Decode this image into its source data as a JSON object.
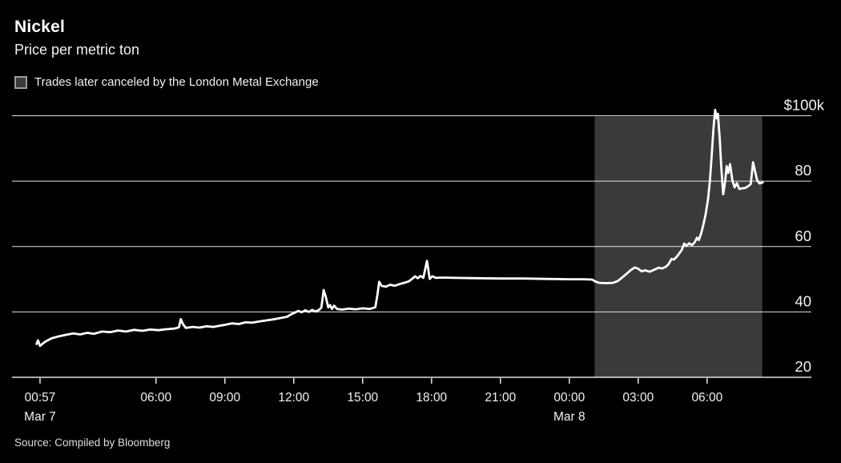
{
  "chart_data": {
    "type": "line",
    "title": "Nickel",
    "subtitle": "Price per metric ton",
    "legend_label": "Trades later canceled by the London Metal Exchange",
    "source": "Source: Compiled by Bloomberg",
    "colors": {
      "background": "#000000",
      "line": "#ffffff",
      "gridline": "#e3e3e0",
      "shaded_region": "#3a3a3a",
      "text": "#f2f2f0"
    },
    "x_axis": {
      "unit": "hours since Mar 7 00:00",
      "min": -0.27,
      "max": 34.54,
      "ticks": [
        {
          "t": 0.95,
          "label": "00:57",
          "sublabel": "Mar 7"
        },
        {
          "t": 6,
          "label": "06:00"
        },
        {
          "t": 9,
          "label": "09:00"
        },
        {
          "t": 12,
          "label": "12:00"
        },
        {
          "t": 15,
          "label": "15:00"
        },
        {
          "t": 18,
          "label": "18:00"
        },
        {
          "t": 21,
          "label": "21:00"
        },
        {
          "t": 24,
          "label": "00:00",
          "sublabel": "Mar 8"
        },
        {
          "t": 27,
          "label": "03:00"
        },
        {
          "t": 30,
          "label": "06:00"
        }
      ]
    },
    "y_axis": {
      "unit": "USD thousands per metric ton",
      "min": 20,
      "max": 100,
      "ticks": [
        {
          "v": 100,
          "label": "$100k"
        },
        {
          "v": 80,
          "label": "80"
        },
        {
          "v": 60,
          "label": "60"
        },
        {
          "v": 40,
          "label": "40"
        },
        {
          "v": 20,
          "label": "20"
        }
      ]
    },
    "shaded_region": {
      "start": 25.1,
      "end": 32.4
    },
    "series": [
      {
        "name": "Nickel price",
        "points": [
          [
            0.8,
            30.2
          ],
          [
            0.86,
            31.3
          ],
          [
            0.95,
            29.6
          ],
          [
            1.05,
            30.2
          ],
          [
            1.2,
            31.0
          ],
          [
            1.45,
            31.9
          ],
          [
            1.75,
            32.5
          ],
          [
            2.1,
            33.0
          ],
          [
            2.4,
            33.4
          ],
          [
            2.7,
            33.1
          ],
          [
            3.0,
            33.6
          ],
          [
            3.3,
            33.3
          ],
          [
            3.65,
            34.0
          ],
          [
            4.0,
            33.8
          ],
          [
            4.35,
            34.3
          ],
          [
            4.7,
            34.0
          ],
          [
            5.05,
            34.5
          ],
          [
            5.4,
            34.2
          ],
          [
            5.75,
            34.6
          ],
          [
            6.1,
            34.4
          ],
          [
            6.45,
            34.7
          ],
          [
            6.8,
            34.9
          ],
          [
            7.0,
            35.3
          ],
          [
            7.08,
            37.8
          ],
          [
            7.18,
            36.2
          ],
          [
            7.3,
            35.1
          ],
          [
            7.6,
            35.4
          ],
          [
            7.9,
            35.2
          ],
          [
            8.2,
            35.6
          ],
          [
            8.5,
            35.4
          ],
          [
            8.8,
            35.8
          ],
          [
            9.05,
            36.1
          ],
          [
            9.3,
            36.5
          ],
          [
            9.6,
            36.3
          ],
          [
            9.9,
            36.8
          ],
          [
            10.2,
            36.7
          ],
          [
            10.5,
            37.1
          ],
          [
            10.8,
            37.4
          ],
          [
            11.1,
            37.7
          ],
          [
            11.4,
            38.1
          ],
          [
            11.7,
            38.5
          ],
          [
            11.9,
            39.3
          ],
          [
            12.05,
            39.8
          ],
          [
            12.2,
            40.3
          ],
          [
            12.35,
            39.9
          ],
          [
            12.5,
            40.5
          ],
          [
            12.65,
            40.0
          ],
          [
            12.8,
            40.6
          ],
          [
            12.95,
            40.1
          ],
          [
            13.1,
            40.6
          ],
          [
            13.2,
            41.3
          ],
          [
            13.3,
            46.7
          ],
          [
            13.4,
            44.5
          ],
          [
            13.5,
            41.4
          ],
          [
            13.58,
            42.1
          ],
          [
            13.66,
            40.9
          ],
          [
            13.76,
            41.9
          ],
          [
            13.88,
            40.9
          ],
          [
            14.1,
            40.7
          ],
          [
            14.4,
            41.0
          ],
          [
            14.7,
            40.8
          ],
          [
            15.0,
            41.1
          ],
          [
            15.3,
            40.9
          ],
          [
            15.55,
            41.4
          ],
          [
            15.65,
            45.5
          ],
          [
            15.72,
            49.2
          ],
          [
            15.82,
            48.0
          ],
          [
            16.0,
            47.7
          ],
          [
            16.2,
            48.3
          ],
          [
            16.4,
            48.0
          ],
          [
            16.6,
            48.5
          ],
          [
            16.8,
            48.9
          ],
          [
            17.0,
            49.3
          ],
          [
            17.15,
            50.1
          ],
          [
            17.28,
            50.9
          ],
          [
            17.4,
            50.3
          ],
          [
            17.52,
            51.0
          ],
          [
            17.64,
            50.4
          ],
          [
            17.8,
            55.6
          ],
          [
            17.92,
            50.1
          ],
          [
            18.04,
            50.9
          ],
          [
            18.18,
            50.4
          ],
          [
            18.5,
            50.5
          ],
          [
            19.0,
            50.4
          ],
          [
            20.0,
            50.3
          ],
          [
            21.0,
            50.2
          ],
          [
            22.0,
            50.2
          ],
          [
            23.0,
            50.1
          ],
          [
            24.0,
            50.0
          ],
          [
            24.6,
            50.0
          ],
          [
            25.0,
            49.9
          ],
          [
            25.1,
            49.4
          ],
          [
            25.3,
            48.9
          ],
          [
            25.6,
            48.8
          ],
          [
            25.9,
            48.9
          ],
          [
            26.1,
            49.4
          ],
          [
            26.3,
            50.5
          ],
          [
            26.5,
            51.7
          ],
          [
            26.7,
            52.9
          ],
          [
            26.85,
            53.6
          ],
          [
            27.0,
            53.2
          ],
          [
            27.15,
            52.4
          ],
          [
            27.3,
            52.7
          ],
          [
            27.5,
            52.3
          ],
          [
            27.7,
            52.9
          ],
          [
            27.88,
            53.5
          ],
          [
            28.05,
            53.3
          ],
          [
            28.2,
            53.8
          ],
          [
            28.32,
            54.6
          ],
          [
            28.45,
            56.2
          ],
          [
            28.55,
            56.0
          ],
          [
            28.68,
            56.9
          ],
          [
            28.8,
            58.0
          ],
          [
            28.9,
            59.0
          ],
          [
            29.0,
            60.9
          ],
          [
            29.1,
            60.2
          ],
          [
            29.22,
            61.0
          ],
          [
            29.34,
            60.4
          ],
          [
            29.46,
            61.3
          ],
          [
            29.56,
            62.7
          ],
          [
            29.64,
            62.0
          ],
          [
            29.74,
            64.0
          ],
          [
            29.84,
            66.8
          ],
          [
            29.94,
            70.0
          ],
          [
            30.04,
            74.5
          ],
          [
            30.12,
            80.0
          ],
          [
            30.2,
            88.0
          ],
          [
            30.28,
            96.5
          ],
          [
            30.35,
            101.8
          ],
          [
            30.42,
            99.2
          ],
          [
            30.47,
            100.6
          ],
          [
            30.55,
            93.0
          ],
          [
            30.62,
            84.0
          ],
          [
            30.7,
            76.0
          ],
          [
            30.78,
            79.6
          ],
          [
            30.85,
            84.6
          ],
          [
            30.92,
            82.5
          ],
          [
            31.0,
            85.2
          ],
          [
            31.1,
            80.2
          ],
          [
            31.2,
            78.1
          ],
          [
            31.3,
            79.4
          ],
          [
            31.4,
            77.6
          ],
          [
            31.52,
            77.8
          ],
          [
            31.66,
            77.9
          ],
          [
            31.8,
            78.5
          ],
          [
            31.9,
            79.1
          ],
          [
            32.0,
            85.8
          ],
          [
            32.08,
            83.2
          ],
          [
            32.18,
            80.3
          ],
          [
            32.28,
            79.3
          ],
          [
            32.42,
            79.6
          ]
        ]
      }
    ],
    "layout": {
      "grid": "horizontal-only",
      "legend_position": "top-left",
      "y_labels_position": "right"
    }
  }
}
